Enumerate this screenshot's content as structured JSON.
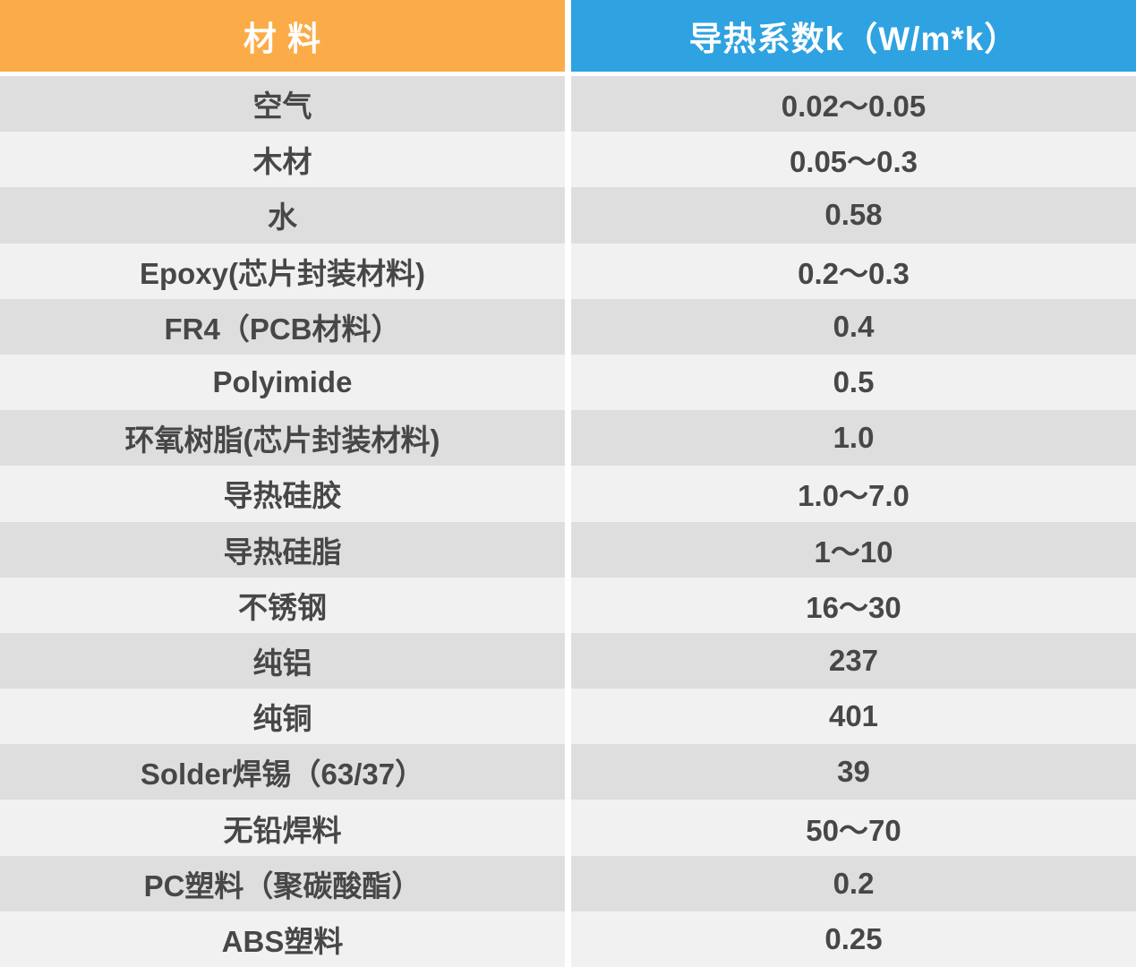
{
  "colors": {
    "header_material_bg": "#FBAC49",
    "header_value_bg": "#2FA2E2",
    "header_text": "#FFFFFF",
    "row_dark_bg": "#DEDEDE",
    "row_light_bg": "#F1F1F1",
    "row_text": "#474747",
    "divider": "#FFFFFF"
  },
  "table": {
    "header": {
      "material_label": "材 料",
      "value_label": "导热系数k（W/m*k）"
    },
    "rows": [
      {
        "material": "空气",
        "value": "0.02～0.05"
      },
      {
        "material": "木材",
        "value": "0.05～0.3"
      },
      {
        "material": "水",
        "value": "0.58"
      },
      {
        "material": "Epoxy(芯片封装材料)",
        "value": "0.2～0.3"
      },
      {
        "material": "FR4（PCB材料）",
        "value": "0.4"
      },
      {
        "material": "Polyimide",
        "value": "0.5"
      },
      {
        "material": "环氧树脂(芯片封装材料)",
        "value": "1.0"
      },
      {
        "material": "导热硅胶",
        "value": "1.0～7.0"
      },
      {
        "material": "导热硅脂",
        "value": "1～10"
      },
      {
        "material": "不锈钢",
        "value": "16～30"
      },
      {
        "material": "纯铝",
        "value": "237"
      },
      {
        "material": "纯铜",
        "value": "401"
      },
      {
        "material": "Solder焊锡（63/37）",
        "value": "39"
      },
      {
        "material": "无铅焊料",
        "value": "50～70"
      },
      {
        "material": "PC塑料（聚碳酸酯）",
        "value": "0.2"
      },
      {
        "material": "ABS塑料",
        "value": "0.25"
      }
    ]
  },
  "chart_data": {
    "type": "table",
    "title": "",
    "columns": [
      "材 料",
      "导热系数k（W/m*k）"
    ],
    "rows": [
      [
        "空气",
        "0.02～0.05"
      ],
      [
        "木材",
        "0.05～0.3"
      ],
      [
        "水",
        "0.58"
      ],
      [
        "Epoxy(芯片封装材料)",
        "0.2～0.3"
      ],
      [
        "FR4（PCB材料）",
        "0.4"
      ],
      [
        "Polyimide",
        "0.5"
      ],
      [
        "环氧树脂(芯片封装材料)",
        "1.0"
      ],
      [
        "导热硅胶",
        "1.0～7.0"
      ],
      [
        "导热硅脂",
        "1～10"
      ],
      [
        "不锈钢",
        "16～30"
      ],
      [
        "纯铝",
        "237"
      ],
      [
        "纯铜",
        "401"
      ],
      [
        "Solder焊锡（63/37）",
        "39"
      ],
      [
        "无铅焊料",
        "50～70"
      ],
      [
        "PC塑料（聚碳酸酯）",
        "0.2"
      ],
      [
        "ABS塑料",
        "0.25"
      ]
    ]
  }
}
